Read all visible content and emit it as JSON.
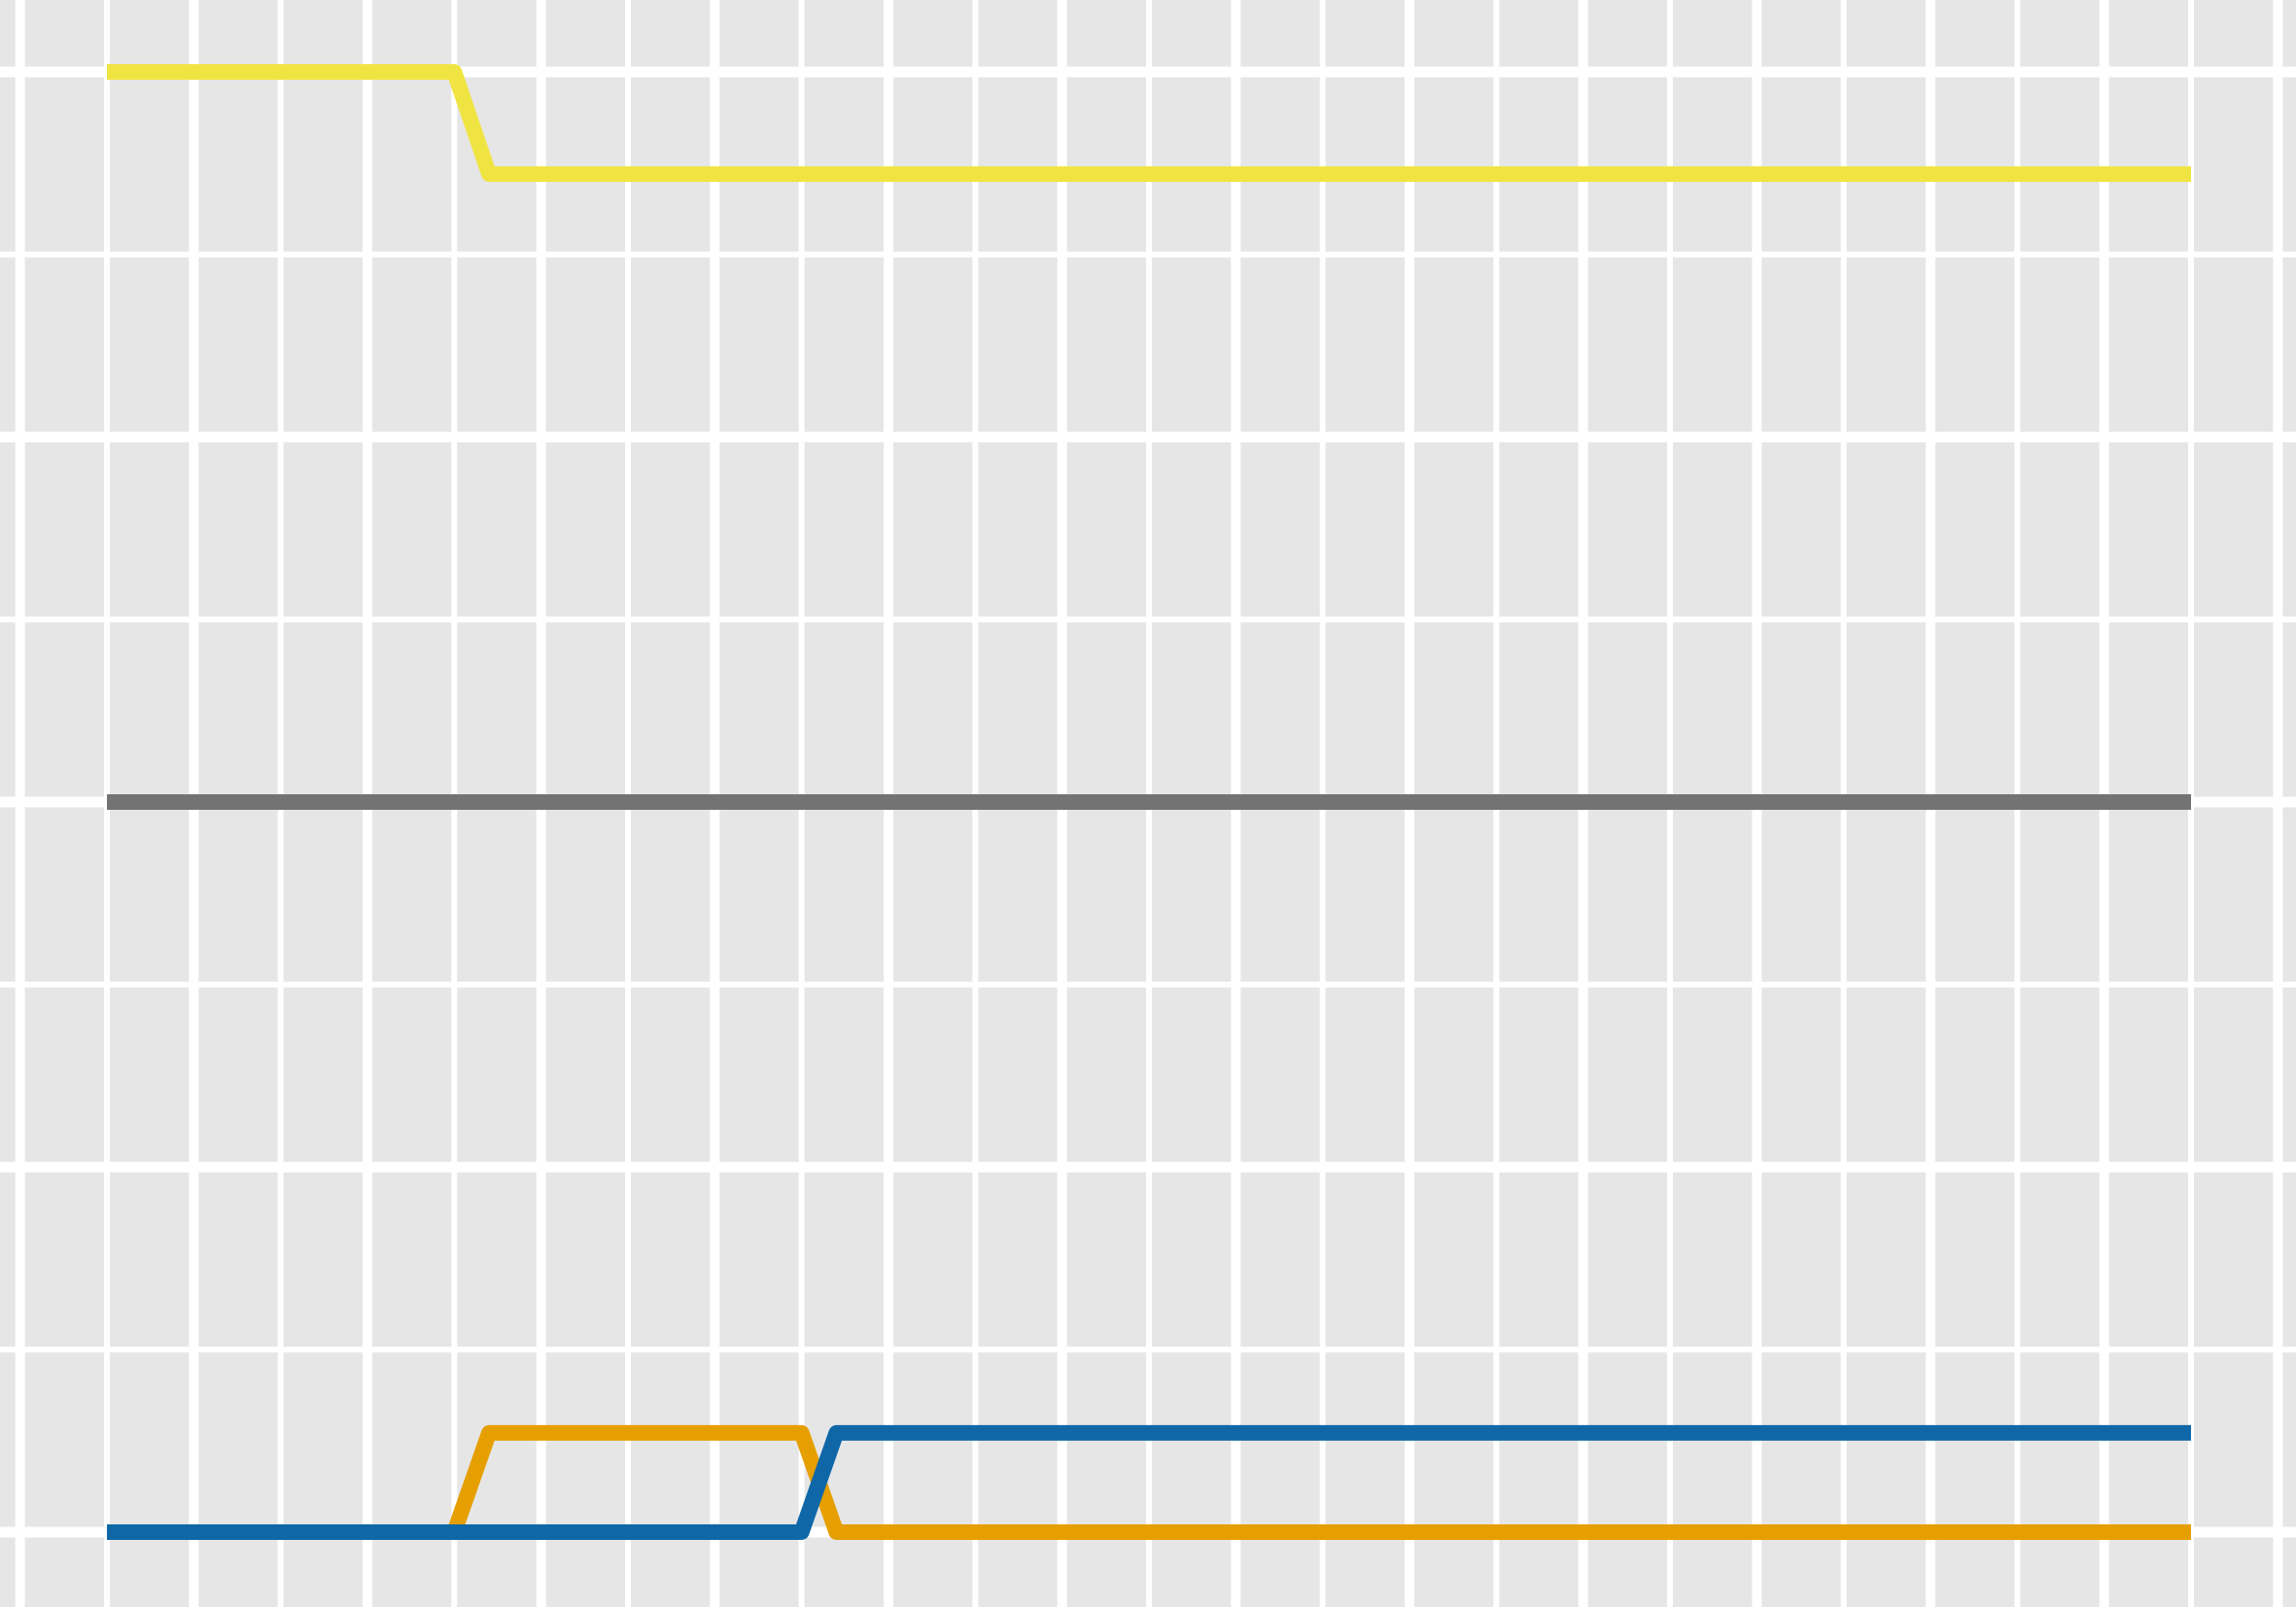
{
  "chart_data": {
    "type": "line",
    "title": "",
    "xlabel": "",
    "ylabel": "",
    "grid": true,
    "x": [
      0,
      1,
      2,
      3,
      4,
      5,
      6,
      7,
      8,
      9,
      10,
      11,
      12
    ],
    "series": [
      {
        "color": "#f0e442",
        "values": [
          [
            0,
            1.0
          ],
          [
            2,
            1.0
          ],
          [
            2.2,
            0.93
          ],
          [
            12,
            0.93
          ]
        ]
      },
      {
        "color": "#737373",
        "values": [
          [
            0,
            0.5
          ],
          [
            12,
            0.5
          ]
        ]
      },
      {
        "color": "#e69f00",
        "values": [
          [
            0,
            0.0
          ],
          [
            2,
            0.0
          ],
          [
            2.2,
            0.068
          ],
          [
            4,
            0.068
          ],
          [
            4.2,
            0.0
          ],
          [
            12,
            0.0
          ]
        ]
      },
      {
        "color": "#0f67a8",
        "values": [
          [
            0,
            0.0
          ],
          [
            4,
            0.0
          ],
          [
            4.2,
            0.068
          ],
          [
            12,
            0.068
          ]
        ]
      }
    ]
  }
}
